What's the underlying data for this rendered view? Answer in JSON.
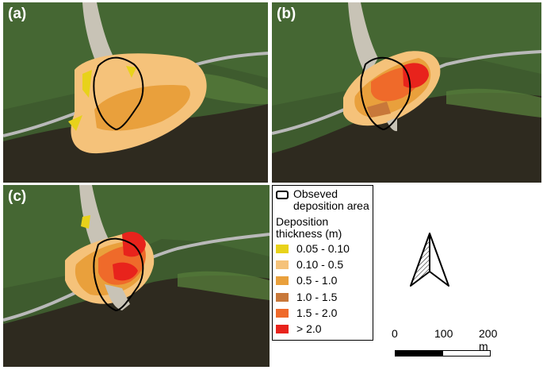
{
  "panels": [
    {
      "label": "(a)",
      "max_class": 3
    },
    {
      "label": "(b)",
      "max_class": 6
    },
    {
      "label": "(c)",
      "max_class": 6
    }
  ],
  "legend": {
    "observed_label": "Obseved deposition area",
    "thickness_title": "Deposition thickness (m)",
    "classes": [
      {
        "label": "0.05 - 0.10",
        "color": "#e8d21a"
      },
      {
        "label": "0.10 - 0.5",
        "color": "#f5c27a"
      },
      {
        "label": "0.5 - 1.0",
        "color": "#e9a03c"
      },
      {
        "label": "1.0 - 1.5",
        "color": "#c8783a"
      },
      {
        "label": "1.5 - 2.0",
        "color": "#ef6a2a"
      },
      {
        "label": "> 2.0",
        "color": "#e8231c"
      }
    ]
  },
  "scale": {
    "labels": [
      "0",
      "100",
      "200 m"
    ]
  },
  "colors": {
    "vegetation": "#3d5a2f",
    "river": "#2e2a1f",
    "road": "#b9b9b9",
    "scar": "#c8c3b6"
  }
}
